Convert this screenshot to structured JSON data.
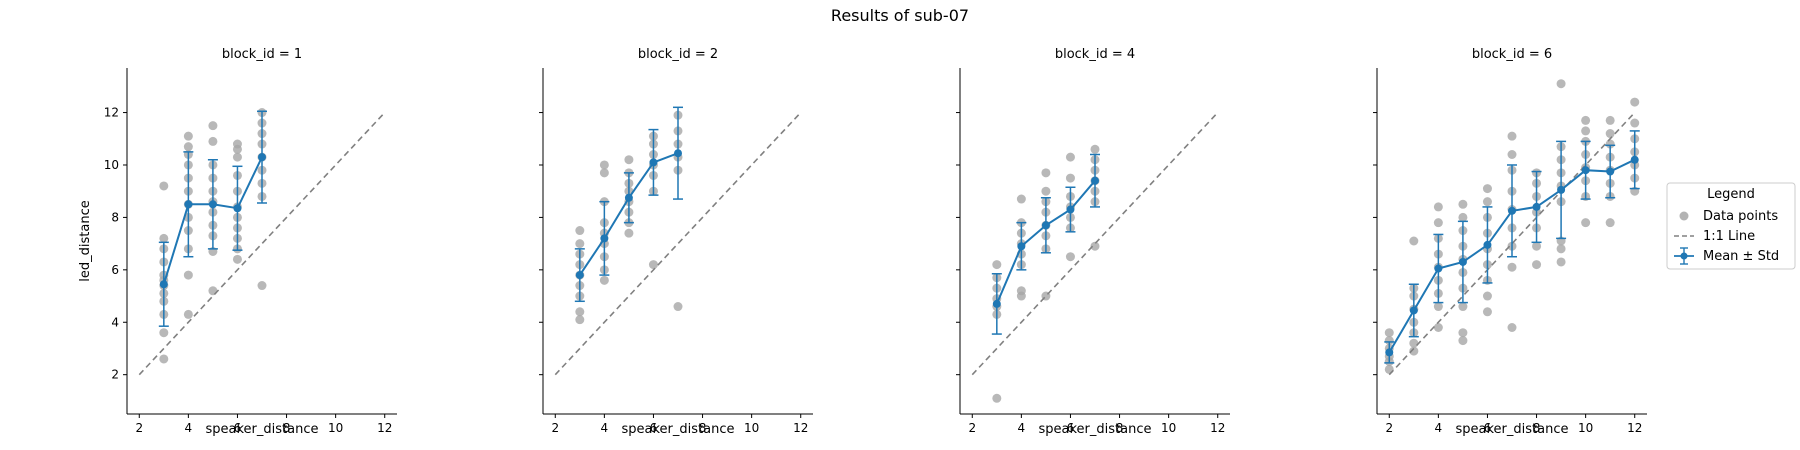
{
  "figure": {
    "title": "Results of sub-07"
  },
  "legend": {
    "title": "Legend",
    "placement": "right",
    "entries": [
      {
        "key": "points",
        "label": "Data points"
      },
      {
        "key": "identity",
        "label": "1:1 Line"
      },
      {
        "key": "mean",
        "label": "Mean ± Std"
      }
    ]
  },
  "colors": {
    "mean": "#1f77b4",
    "points": "#a6a6a6",
    "identity": "#808080",
    "axis": "#000000"
  },
  "chart_data": [
    {
      "type": "line",
      "title": "block_id = 1",
      "xlabel": "speaker_distance",
      "ylabel": "led_distance",
      "xlim": [
        1.5,
        12.5
      ],
      "ylim": [
        0.5,
        13.7
      ],
      "xticks": [
        2,
        4,
        6,
        8,
        10,
        12
      ],
      "yticks": [
        2,
        4,
        6,
        8,
        10,
        12
      ],
      "grid": false,
      "identity_line": [
        [
          2,
          2
        ],
        [
          12,
          12
        ]
      ],
      "mean_series": {
        "name": "Mean ± Std",
        "x": [
          3,
          4,
          5,
          6,
          7
        ],
        "mean": [
          5.45,
          8.5,
          8.5,
          8.35,
          10.3
        ],
        "std": [
          1.6,
          2.0,
          1.7,
          1.6,
          1.75
        ]
      },
      "points": [
        [
          3,
          2.6
        ],
        [
          3,
          3.6
        ],
        [
          3,
          4.3
        ],
        [
          3,
          4.8
        ],
        [
          3,
          5.1
        ],
        [
          3,
          5.4
        ],
        [
          3,
          5.6
        ],
        [
          3,
          5.8
        ],
        [
          3,
          6.3
        ],
        [
          3,
          6.8
        ],
        [
          3,
          7.2
        ],
        [
          3,
          9.2
        ],
        [
          4,
          4.3
        ],
        [
          4,
          5.8
        ],
        [
          4,
          6.8
        ],
        [
          4,
          7.5
        ],
        [
          4,
          8.0
        ],
        [
          4,
          8.5
        ],
        [
          4,
          9.0
        ],
        [
          4,
          9.5
        ],
        [
          4,
          10.0
        ],
        [
          4,
          10.4
        ],
        [
          4,
          10.7
        ],
        [
          4,
          11.1
        ],
        [
          5,
          5.2
        ],
        [
          5,
          6.7
        ],
        [
          5,
          7.3
        ],
        [
          5,
          7.7
        ],
        [
          5,
          8.2
        ],
        [
          5,
          8.6
        ],
        [
          5,
          9.0
        ],
        [
          5,
          9.5
        ],
        [
          5,
          10.0
        ],
        [
          5,
          10.9
        ],
        [
          5,
          11.5
        ],
        [
          6,
          6.4
        ],
        [
          6,
          6.8
        ],
        [
          6,
          7.2
        ],
        [
          6,
          7.6
        ],
        [
          6,
          8.0
        ],
        [
          6,
          8.4
        ],
        [
          6,
          9.0
        ],
        [
          6,
          9.6
        ],
        [
          6,
          10.3
        ],
        [
          6,
          10.6
        ],
        [
          6,
          10.8
        ],
        [
          7,
          5.4
        ],
        [
          7,
          8.8
        ],
        [
          7,
          9.3
        ],
        [
          7,
          9.8
        ],
        [
          7,
          10.3
        ],
        [
          7,
          10.8
        ],
        [
          7,
          11.2
        ],
        [
          7,
          11.6
        ],
        [
          7,
          12.0
        ]
      ]
    },
    {
      "type": "line",
      "title": "block_id = 2",
      "xlabel": "speaker_distance",
      "ylabel": "",
      "xlim": [
        1.5,
        12.5
      ],
      "ylim": [
        0.5,
        13.7
      ],
      "xticks": [
        2,
        4,
        6,
        8,
        10,
        12
      ],
      "yticks": [
        2,
        4,
        6,
        8,
        10,
        12
      ],
      "grid": false,
      "identity_line": [
        [
          2,
          2
        ],
        [
          12,
          12
        ]
      ],
      "mean_series": {
        "name": "Mean ± Std",
        "x": [
          3,
          4,
          5,
          6,
          7
        ],
        "mean": [
          5.8,
          7.2,
          8.75,
          10.1,
          10.45
        ],
        "std": [
          1.0,
          1.4,
          0.95,
          1.25,
          1.75
        ]
      },
      "points": [
        [
          3,
          4.1
        ],
        [
          3,
          4.4
        ],
        [
          3,
          5.0
        ],
        [
          3,
          5.4
        ],
        [
          3,
          5.8
        ],
        [
          3,
          6.2
        ],
        [
          3,
          6.6
        ],
        [
          3,
          7.0
        ],
        [
          3,
          7.5
        ],
        [
          4,
          5.6
        ],
        [
          4,
          6.0
        ],
        [
          4,
          6.5
        ],
        [
          4,
          7.0
        ],
        [
          4,
          7.4
        ],
        [
          4,
          7.8
        ],
        [
          4,
          8.6
        ],
        [
          4,
          9.7
        ],
        [
          4,
          10.0
        ],
        [
          5,
          7.4
        ],
        [
          5,
          7.8
        ],
        [
          5,
          8.2
        ],
        [
          5,
          8.6
        ],
        [
          5,
          9.0
        ],
        [
          5,
          9.3
        ],
        [
          5,
          9.7
        ],
        [
          5,
          10.2
        ],
        [
          6,
          6.2
        ],
        [
          6,
          9.0
        ],
        [
          6,
          9.6
        ],
        [
          6,
          10.0
        ],
        [
          6,
          10.4
        ],
        [
          6,
          10.8
        ],
        [
          6,
          11.1
        ],
        [
          7,
          4.6
        ],
        [
          7,
          9.8
        ],
        [
          7,
          10.3
        ],
        [
          7,
          10.8
        ],
        [
          7,
          11.3
        ],
        [
          7,
          11.9
        ]
      ]
    },
    {
      "type": "line",
      "title": "block_id = 4",
      "xlabel": "speaker_distance",
      "ylabel": "",
      "xlim": [
        1.5,
        12.5
      ],
      "ylim": [
        0.5,
        13.7
      ],
      "xticks": [
        2,
        4,
        6,
        8,
        10,
        12
      ],
      "yticks": [
        2,
        4,
        6,
        8,
        10,
        12
      ],
      "grid": false,
      "identity_line": [
        [
          2,
          2
        ],
        [
          12,
          12
        ]
      ],
      "mean_series": {
        "name": "Mean ± Std",
        "x": [
          3,
          4,
          5,
          6,
          7
        ],
        "mean": [
          4.7,
          6.9,
          7.7,
          8.3,
          9.4
        ],
        "std": [
          1.15,
          0.9,
          1.05,
          0.85,
          1.0
        ]
      },
      "points": [
        [
          3,
          1.1
        ],
        [
          3,
          4.3
        ],
        [
          3,
          4.6
        ],
        [
          3,
          4.9
        ],
        [
          3,
          5.3
        ],
        [
          3,
          5.7
        ],
        [
          3,
          6.2
        ],
        [
          4,
          5.0
        ],
        [
          4,
          5.2
        ],
        [
          4,
          6.2
        ],
        [
          4,
          6.6
        ],
        [
          4,
          7.0
        ],
        [
          4,
          7.4
        ],
        [
          4,
          7.8
        ],
        [
          4,
          8.7
        ],
        [
          5,
          5.0
        ],
        [
          5,
          6.8
        ],
        [
          5,
          7.3
        ],
        [
          5,
          7.7
        ],
        [
          5,
          8.2
        ],
        [
          5,
          8.6
        ],
        [
          5,
          9.0
        ],
        [
          5,
          9.7
        ],
        [
          6,
          6.5
        ],
        [
          6,
          7.6
        ],
        [
          6,
          8.0
        ],
        [
          6,
          8.4
        ],
        [
          6,
          8.8
        ],
        [
          6,
          9.5
        ],
        [
          6,
          10.3
        ],
        [
          7,
          6.9
        ],
        [
          7,
          8.6
        ],
        [
          7,
          9.0
        ],
        [
          7,
          9.4
        ],
        [
          7,
          9.8
        ],
        [
          7,
          10.2
        ],
        [
          7,
          10.6
        ]
      ]
    },
    {
      "type": "line",
      "title": "block_id = 6",
      "xlabel": "speaker_distance",
      "ylabel": "",
      "xlim": [
        1.5,
        12.5
      ],
      "ylim": [
        0.5,
        13.7
      ],
      "xticks": [
        2,
        4,
        6,
        8,
        10,
        12
      ],
      "yticks": [
        2,
        4,
        6,
        8,
        10,
        12
      ],
      "grid": false,
      "identity_line": [
        [
          2,
          2
        ],
        [
          12,
          12
        ]
      ],
      "mean_series": {
        "name": "Mean ± Std",
        "x": [
          2,
          3,
          4,
          5,
          6,
          7,
          8,
          9,
          10,
          11,
          12
        ],
        "mean": [
          2.85,
          4.45,
          6.05,
          6.3,
          6.95,
          8.25,
          8.4,
          9.05,
          9.8,
          9.75,
          10.2
        ],
        "std": [
          0.4,
          1.0,
          1.3,
          1.55,
          1.45,
          1.75,
          1.35,
          1.85,
          1.1,
          1.0,
          1.1
        ]
      },
      "points": [
        [
          2,
          2.2
        ],
        [
          2,
          2.5
        ],
        [
          2,
          2.7
        ],
        [
          2,
          3.0
        ],
        [
          2,
          3.3
        ],
        [
          2,
          3.6
        ],
        [
          3,
          2.9
        ],
        [
          3,
          3.2
        ],
        [
          3,
          3.6
        ],
        [
          3,
          4.0
        ],
        [
          3,
          4.5
        ],
        [
          3,
          5.0
        ],
        [
          3,
          5.3
        ],
        [
          3,
          7.1
        ],
        [
          4,
          3.8
        ],
        [
          4,
          4.6
        ],
        [
          4,
          5.1
        ],
        [
          4,
          5.6
        ],
        [
          4,
          6.1
        ],
        [
          4,
          6.6
        ],
        [
          4,
          7.2
        ],
        [
          4,
          7.8
        ],
        [
          4,
          8.4
        ],
        [
          5,
          3.3
        ],
        [
          5,
          3.6
        ],
        [
          5,
          4.6
        ],
        [
          5,
          5.3
        ],
        [
          5,
          5.9
        ],
        [
          5,
          6.4
        ],
        [
          5,
          6.9
        ],
        [
          5,
          7.5
        ],
        [
          5,
          8.0
        ],
        [
          5,
          8.5
        ],
        [
          6,
          4.4
        ],
        [
          6,
          5.0
        ],
        [
          6,
          5.6
        ],
        [
          6,
          6.2
        ],
        [
          6,
          6.8
        ],
        [
          6,
          7.4
        ],
        [
          6,
          8.0
        ],
        [
          6,
          8.6
        ],
        [
          6,
          9.1
        ],
        [
          7,
          3.8
        ],
        [
          7,
          6.1
        ],
        [
          7,
          6.9
        ],
        [
          7,
          7.6
        ],
        [
          7,
          8.3
        ],
        [
          7,
          9.0
        ],
        [
          7,
          9.8
        ],
        [
          7,
          10.4
        ],
        [
          7,
          11.1
        ],
        [
          8,
          6.2
        ],
        [
          8,
          6.9
        ],
        [
          8,
          7.6
        ],
        [
          8,
          8.2
        ],
        [
          8,
          8.8
        ],
        [
          8,
          9.3
        ],
        [
          8,
          9.7
        ],
        [
          9,
          6.3
        ],
        [
          9,
          6.8
        ],
        [
          9,
          7.1
        ],
        [
          9,
          8.6
        ],
        [
          9,
          9.2
        ],
        [
          9,
          9.7
        ],
        [
          9,
          10.2
        ],
        [
          9,
          10.7
        ],
        [
          9,
          13.1
        ],
        [
          10,
          7.8
        ],
        [
          10,
          8.8
        ],
        [
          10,
          9.4
        ],
        [
          10,
          9.9
        ],
        [
          10,
          10.4
        ],
        [
          10,
          10.9
        ],
        [
          10,
          11.3
        ],
        [
          10,
          11.7
        ],
        [
          11,
          7.8
        ],
        [
          11,
          8.8
        ],
        [
          11,
          9.3
        ],
        [
          11,
          9.8
        ],
        [
          11,
          10.3
        ],
        [
          11,
          10.8
        ],
        [
          11,
          11.2
        ],
        [
          11,
          11.7
        ],
        [
          12,
          9.0
        ],
        [
          12,
          9.5
        ],
        [
          12,
          10.0
        ],
        [
          12,
          10.5
        ],
        [
          12,
          11.0
        ],
        [
          12,
          11.6
        ],
        [
          12,
          12.4
        ]
      ]
    }
  ]
}
